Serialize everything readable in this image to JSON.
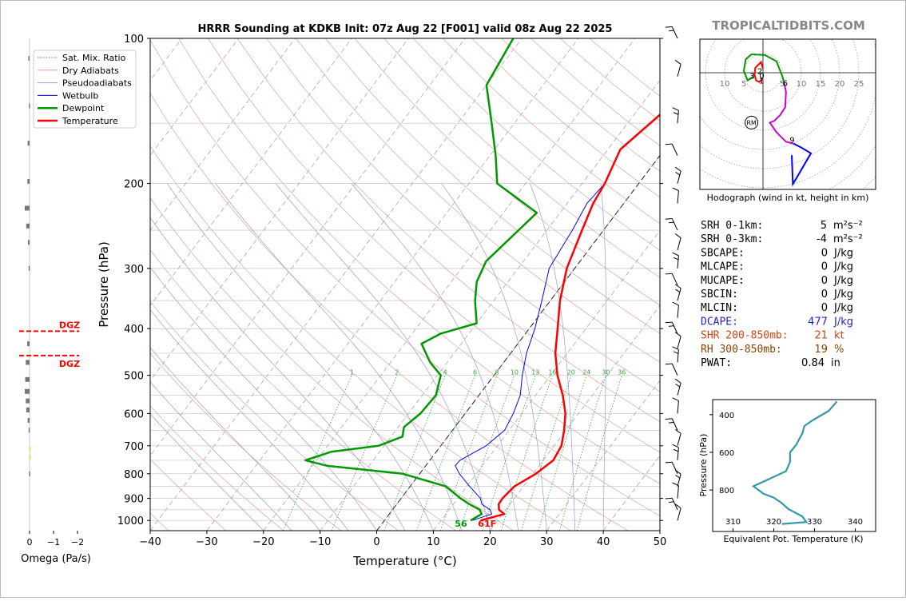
{
  "title": "HRRR Sounding at KDKB Init: 07z Aug 22 [F001] valid 08z Aug 22 2025",
  "watermark": "TROPICALTIDBITS.COM",
  "chart_data": {
    "type": "line",
    "xlabel": "Temperature (°C)",
    "ylabel": "Pressure (hPa)",
    "xlim": [
      -40,
      50
    ],
    "ylim": [
      1050,
      100
    ],
    "log_y": true,
    "grid": true,
    "legend_position": "top-left",
    "x_ticks": [
      "−40",
      "−30",
      "−20",
      "−10",
      "0",
      "10",
      "20",
      "30",
      "40",
      "50"
    ],
    "y_ticks": [
      "100",
      "200",
      "300",
      "400",
      "500",
      "600",
      "700",
      "800",
      "900",
      "1000"
    ],
    "mixing_ratio_labels": [
      "1",
      "2",
      "4",
      "6",
      "8",
      "10",
      "13",
      "16",
      "20",
      "24",
      "30",
      "36"
    ],
    "legend": [
      "Sat. Mix. Ratio",
      "Dry Adiabats",
      "Pseudoadiabats",
      "Wetbulb",
      "Dewpoint",
      "Temperature"
    ],
    "surface_dewpoint_label": "56",
    "surface_temperature_label": "61F",
    "series": [
      {
        "name": "Temperature",
        "color": "#ff0000",
        "p": [
          1000,
          970,
          950,
          925,
          900,
          850,
          800,
          750,
          700,
          650,
          600,
          550,
          500,
          450,
          400,
          350,
          300,
          250,
          220,
          200,
          170,
          135,
          100
        ],
        "t": [
          17,
          20.3,
          18.8,
          18.0,
          17.9,
          18.4,
          20.5,
          21.8,
          21.3,
          19.7,
          17.7,
          14.8,
          11.2,
          7.9,
          5.0,
          1.7,
          -1.4,
          -3.8,
          -5.4,
          -6.0,
          -7.8,
          -4.5,
          6.0
        ]
      },
      {
        "name": "Dewpoint",
        "color": "#009900",
        "p": [
          1000,
          970,
          950,
          925,
          900,
          850,
          800,
          770,
          750,
          720,
          700,
          670,
          640,
          600,
          550,
          500,
          470,
          430,
          410,
          390,
          350,
          320,
          290,
          250,
          230,
          200,
          175,
          150,
          125,
          100
        ],
        "t": [
          15.2,
          16.3,
          15.4,
          12.8,
          10.5,
          6.3,
          -3.0,
          -17.5,
          -22.0,
          -18.5,
          -11.0,
          -8.0,
          -9.0,
          -7.9,
          -7.6,
          -9.4,
          -13.0,
          -17.0,
          -15.0,
          -10.0,
          -13.3,
          -15.5,
          -16.6,
          -15.0,
          -14.1,
          -25.0,
          -29.0,
          -34.0,
          -40.0,
          -41.5
        ]
      },
      {
        "name": "Wetbulb",
        "color": "#0000ff",
        "p": [
          1000,
          970,
          950,
          925,
          900,
          850,
          800,
          770,
          750,
          700,
          650,
          600,
          550,
          500,
          450,
          400,
          350,
          300,
          250,
          220,
          200,
          170,
          135,
          100
        ],
        "t": [
          15.5,
          18.1,
          17.2,
          15.0,
          14.0,
          10.5,
          7.0,
          5.2,
          5.3,
          8.0,
          9.2,
          8.5,
          7.3,
          5.0,
          2.8,
          1.0,
          -1.5,
          -4.5,
          -5.5,
          -6.5,
          -6.0,
          -7.8,
          -4.5,
          6.0
        ]
      }
    ]
  },
  "omega": {
    "xlabel": "Omega (Pa/s)",
    "x_ticks": [
      "0",
      "−1",
      "−2"
    ],
    "dgz_label": "DGZ",
    "dgz_p": [
      405,
      455
    ],
    "bars": [
      {
        "p": 110,
        "v": 0.05
      },
      {
        "p": 138,
        "v": 0.03
      },
      {
        "p": 165,
        "v": 0.08
      },
      {
        "p": 198,
        "v": 0.09
      },
      {
        "p": 225,
        "v": 0.2
      },
      {
        "p": 245,
        "v": 0.14
      },
      {
        "p": 265,
        "v": 0.07
      },
      {
        "p": 300,
        "v": 0.04
      },
      {
        "p": 430,
        "v": 0.1
      },
      {
        "p": 470,
        "v": 0.16
      },
      {
        "p": 510,
        "v": 0.18
      },
      {
        "p": 540,
        "v": 0.2
      },
      {
        "p": 565,
        "v": 0.16
      },
      {
        "p": 590,
        "v": 0.14
      },
      {
        "p": 620,
        "v": 0.08
      },
      {
        "p": 650,
        "v": 0.04
      },
      {
        "p": 710,
        "v": -0.03
      },
      {
        "p": 740,
        "v": -0.02
      },
      {
        "p": 800,
        "v": 0.02
      }
    ]
  },
  "hodograph": {
    "caption": "Hodograph (wind in kt, height in km)",
    "ring_labels_left": [
      "10",
      "5"
    ],
    "ring_labels_right": [
      "5",
      "10",
      "15",
      "20",
      "25"
    ],
    "storm_motion_label": "RM",
    "height_labels": [
      "0",
      "1",
      "2",
      "3",
      "6",
      "9"
    ],
    "segments": [
      {
        "color": "#ff0000",
        "u": [
          0.0,
          -1.0,
          -1.8,
          -2.2,
          -2.0,
          -0.5,
          0.0
        ],
        "v": [
          -1.5,
          -2.4,
          -2.0,
          -0.5,
          1.3,
          2.8,
          1.0
        ]
      },
      {
        "color": "#009900",
        "u": [
          -2.5,
          -4.0,
          -5.0,
          -4.5,
          -3.0,
          0.5,
          3.5,
          5.0,
          5.5
        ],
        "v": [
          -1.0,
          -2.0,
          0.5,
          3.5,
          4.8,
          4.6,
          3.0,
          -0.8,
          -2.5
        ]
      },
      {
        "color": "#cc00cc",
        "u": [
          5.5,
          6.0,
          5.8,
          4.5,
          3.0,
          1.8,
          3.5,
          6.0,
          8.0
        ],
        "v": [
          -2.5,
          -5.0,
          -9.0,
          -11.0,
          -12.5,
          -13.0,
          -15.5,
          -18.0,
          -18.5
        ]
      },
      {
        "color": "#0000ff",
        "u": [
          8.0,
          10.0,
          12.5,
          9.0,
          7.8,
          7.5
        ],
        "v": [
          -18.5,
          -19.5,
          -21.0,
          -27.0,
          -29.0,
          -21.5
        ]
      }
    ],
    "storm_motion": {
      "u": -3,
      "v": -13
    }
  },
  "indices": [
    {
      "label": "SRH 0-1km:",
      "value": "5",
      "unit": "m²s⁻²",
      "color": "#000000"
    },
    {
      "label": "SRH 0-3km:",
      "value": "-4",
      "unit": "m²s⁻²",
      "color": "#000000"
    },
    {
      "label": "SBCAPE:",
      "value": "0",
      "unit": "J/kg",
      "color": "#000000"
    },
    {
      "label": "MLCAPE:",
      "value": "0",
      "unit": "J/kg",
      "color": "#000000"
    },
    {
      "label": "MUCAPE:",
      "value": "0",
      "unit": "J/kg",
      "color": "#000000"
    },
    {
      "label": "SBCIN:",
      "value": "0",
      "unit": "J/kg",
      "color": "#000000"
    },
    {
      "label": "MLCIN:",
      "value": "0",
      "unit": "J/kg",
      "color": "#000000"
    },
    {
      "label": "DCAPE:",
      "value": "477",
      "unit": "J/kg",
      "color": "#2222cc"
    },
    {
      "label": "SHR 200-850mb:",
      "value": "21",
      "unit": "kt",
      "color": "#cc4411"
    },
    {
      "label": "RH 300-850mb:",
      "value": "19",
      "unit": "%",
      "color": "#884400"
    },
    {
      "label": "PWAT:",
      "value": "0.84",
      "unit": "in",
      "color": "#000000"
    }
  ],
  "theta_e": {
    "xlabel": "Equivalent Pot. Temperature (K)",
    "ylabel": "Pressure (hPa)",
    "x_ticks": [
      "310",
      "320",
      "330",
      "340"
    ],
    "y_ticks": [
      "400",
      "600",
      "800"
    ],
    "xlim": [
      305,
      345
    ],
    "color": "#3399aa",
    "p": [
      330,
      380,
      430,
      460,
      500,
      520,
      560,
      600,
      650,
      700,
      750,
      780,
      820,
      840,
      870,
      900,
      940,
      970,
      980
    ],
    "theta": [
      335.5,
      333.5,
      329.5,
      327.5,
      327.0,
      326.5,
      325.5,
      324.0,
      324.0,
      323.0,
      318.0,
      315.0,
      317.5,
      320.0,
      322.0,
      323.5,
      327.0,
      328.0,
      322.0
    ]
  }
}
